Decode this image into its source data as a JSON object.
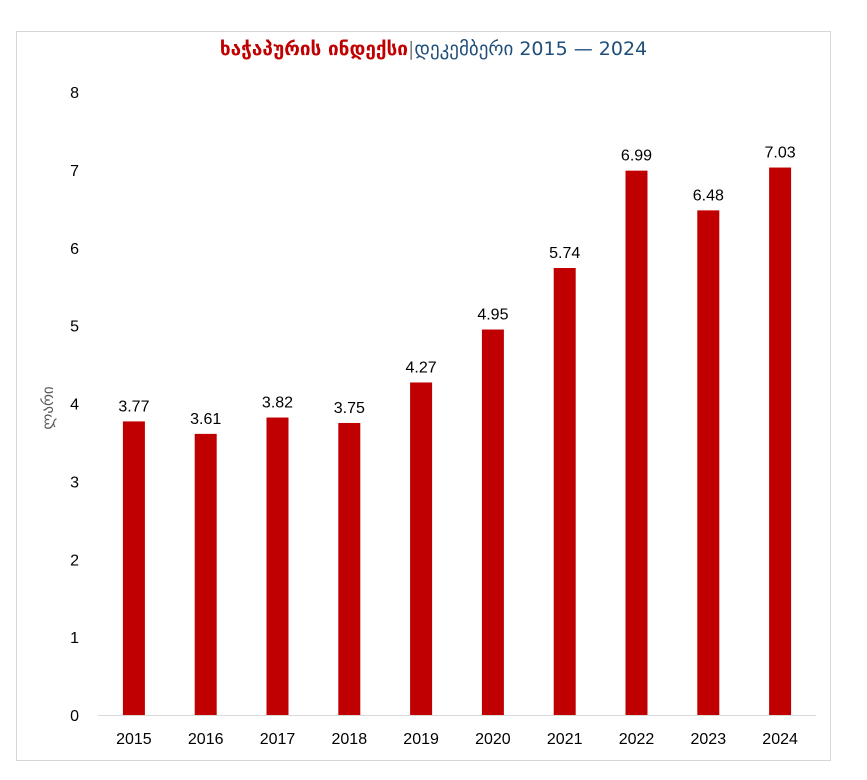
{
  "chart_data": {
    "type": "bar",
    "title_part1": "ხაჭაპურის ინდექსი",
    "title_separator": "|",
    "title_part2": "დეკემბერი 2015 — 2024",
    "ylabel": "ლარი",
    "xlabel": "",
    "ylim": [
      0,
      8
    ],
    "yticks": [
      0,
      1,
      2,
      3,
      4,
      5,
      6,
      7,
      8
    ],
    "categories": [
      "2015",
      "2016",
      "2017",
      "2018",
      "2019",
      "2020",
      "2021",
      "2022",
      "2023",
      "2024"
    ],
    "values": [
      3.77,
      3.61,
      3.82,
      3.75,
      4.27,
      4.95,
      5.74,
      6.99,
      6.48,
      7.03
    ],
    "bar_color": "#c00000",
    "grid": false,
    "legend": "none"
  }
}
